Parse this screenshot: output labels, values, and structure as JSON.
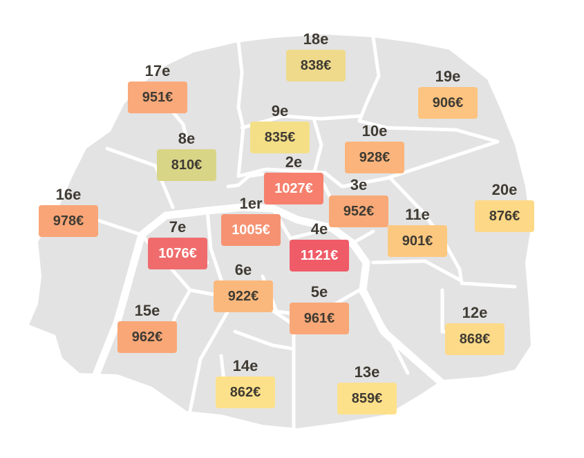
{
  "map": {
    "colors": {
      "land": "#e3e3e3",
      "roads": "#ffffff",
      "text_dark": "#3f3b33",
      "text_light": "#ffffff"
    },
    "arrondissements": [
      {
        "name": "18e",
        "price": "838€",
        "color": "#efda8c"
      },
      {
        "name": "17e",
        "price": "951€",
        "color": "#f9a97a"
      },
      {
        "name": "19e",
        "price": "906€",
        "color": "#fcc480"
      },
      {
        "name": "9e",
        "price": "835€",
        "color": "#f4df87"
      },
      {
        "name": "8e",
        "price": "810€",
        "color": "#d9d586"
      },
      {
        "name": "10e",
        "price": "928€",
        "color": "#fbb47c"
      },
      {
        "name": "2e",
        "price": "1027€",
        "color": "#f6806d",
        "light": true
      },
      {
        "name": "16e",
        "price": "978€",
        "color": "#f9a577"
      },
      {
        "name": "3e",
        "price": "952€",
        "color": "#f9a977"
      },
      {
        "name": "20e",
        "price": "876€",
        "color": "#fdd886"
      },
      {
        "name": "1er",
        "price": "1005€",
        "color": "#f69272",
        "light": true
      },
      {
        "name": "11e",
        "price": "901€",
        "color": "#fcc880"
      },
      {
        "name": "7e",
        "price": "1076€",
        "color": "#f06c6c",
        "light": true
      },
      {
        "name": "4e",
        "price": "1121€",
        "color": "#ef5b67",
        "light": true
      },
      {
        "name": "6e",
        "price": "922€",
        "color": "#fbb87c"
      },
      {
        "name": "5e",
        "price": "961€",
        "color": "#f9a777"
      },
      {
        "name": "15e",
        "price": "962€",
        "color": "#f9a777"
      },
      {
        "name": "12e",
        "price": "868€",
        "color": "#fdda88"
      },
      {
        "name": "14e",
        "price": "862€",
        "color": "#fde18a"
      },
      {
        "name": "13e",
        "price": "859€",
        "color": "#fde08a"
      }
    ]
  }
}
